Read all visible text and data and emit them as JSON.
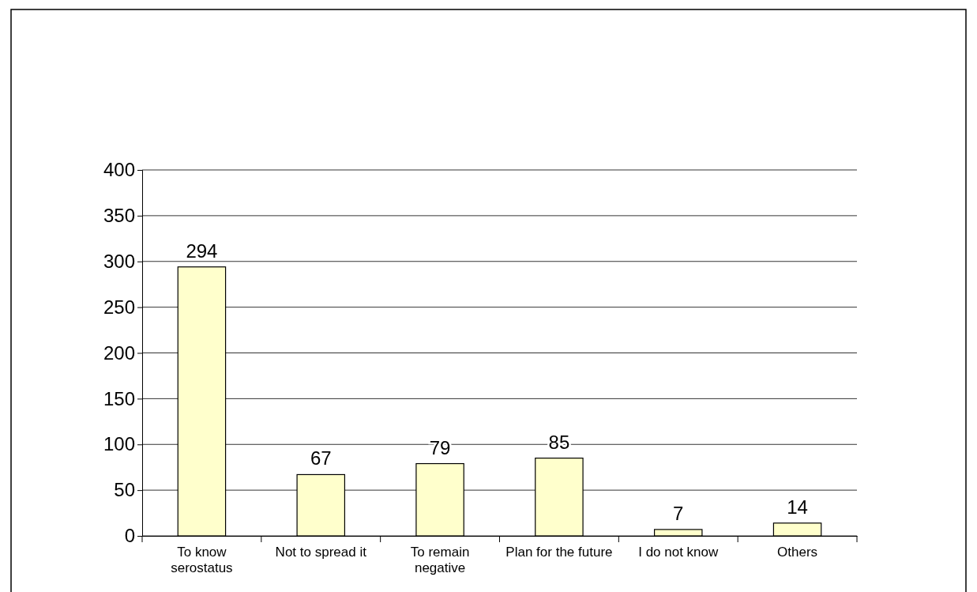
{
  "chart_data": {
    "type": "bar",
    "categories": [
      "To know serostatus",
      "Not to spread it",
      "To remain negative",
      "Plan for the future",
      "I do not know",
      "Others"
    ],
    "values": [
      294,
      67,
      79,
      85,
      7,
      14
    ],
    "color": "#ffffcc",
    "ylim": [
      0,
      400
    ],
    "yticks": [
      0,
      50,
      100,
      150,
      200,
      250,
      300,
      350,
      400
    ],
    "grid": "y",
    "data_labels": true
  }
}
